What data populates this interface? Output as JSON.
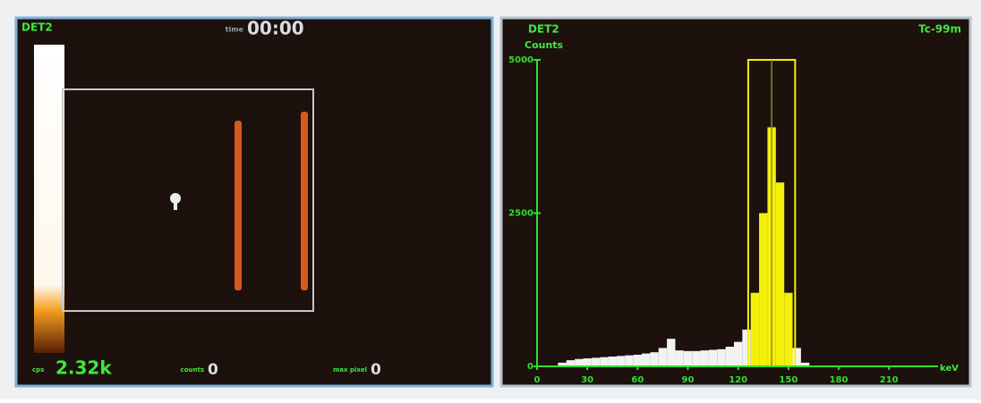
{
  "left_panel": {
    "detector": "DET2",
    "time_label": "time",
    "time": "00:00",
    "cps_label": "cps",
    "cps": "2.32k",
    "counts_label": "counts",
    "counts": "0",
    "max_pixel_label": "max pixel",
    "max_pixel": "0"
  },
  "chart_data": {
    "type": "histogram",
    "title": "DET2",
    "ylabel": "Counts",
    "xlabel": "keV",
    "isotope": "Tc-99m",
    "x": [
      0,
      5,
      10,
      15,
      20,
      25,
      30,
      35,
      40,
      45,
      50,
      55,
      60,
      65,
      70,
      75,
      80,
      85,
      90,
      95,
      100,
      105,
      110,
      115,
      120,
      125,
      130,
      135,
      140,
      145,
      150,
      155,
      160,
      165,
      170,
      175,
      180,
      185,
      190,
      195,
      200,
      205,
      210,
      215,
      220,
      225,
      230
    ],
    "values": [
      0,
      0,
      0,
      60,
      100,
      120,
      130,
      140,
      150,
      160,
      170,
      180,
      190,
      210,
      230,
      300,
      450,
      260,
      250,
      250,
      260,
      270,
      280,
      320,
      400,
      600,
      1200,
      2500,
      3900,
      3000,
      1200,
      300,
      60,
      0,
      0,
      0,
      0,
      0,
      0,
      0,
      0,
      0,
      0,
      0,
      0,
      0,
      0
    ],
    "window": [
      126,
      154
    ],
    "window_center": 140,
    "xlim": [
      0,
      235
    ],
    "ylim": [
      0,
      5000
    ],
    "xticks": [
      0,
      30,
      60,
      90,
      120,
      150,
      180,
      210
    ],
    "yticks": [
      0,
      2500,
      5000
    ],
    "inside_color": "#f5f00a",
    "outside_color": "#f2f2f2",
    "axis_color": "#2ee02e"
  }
}
